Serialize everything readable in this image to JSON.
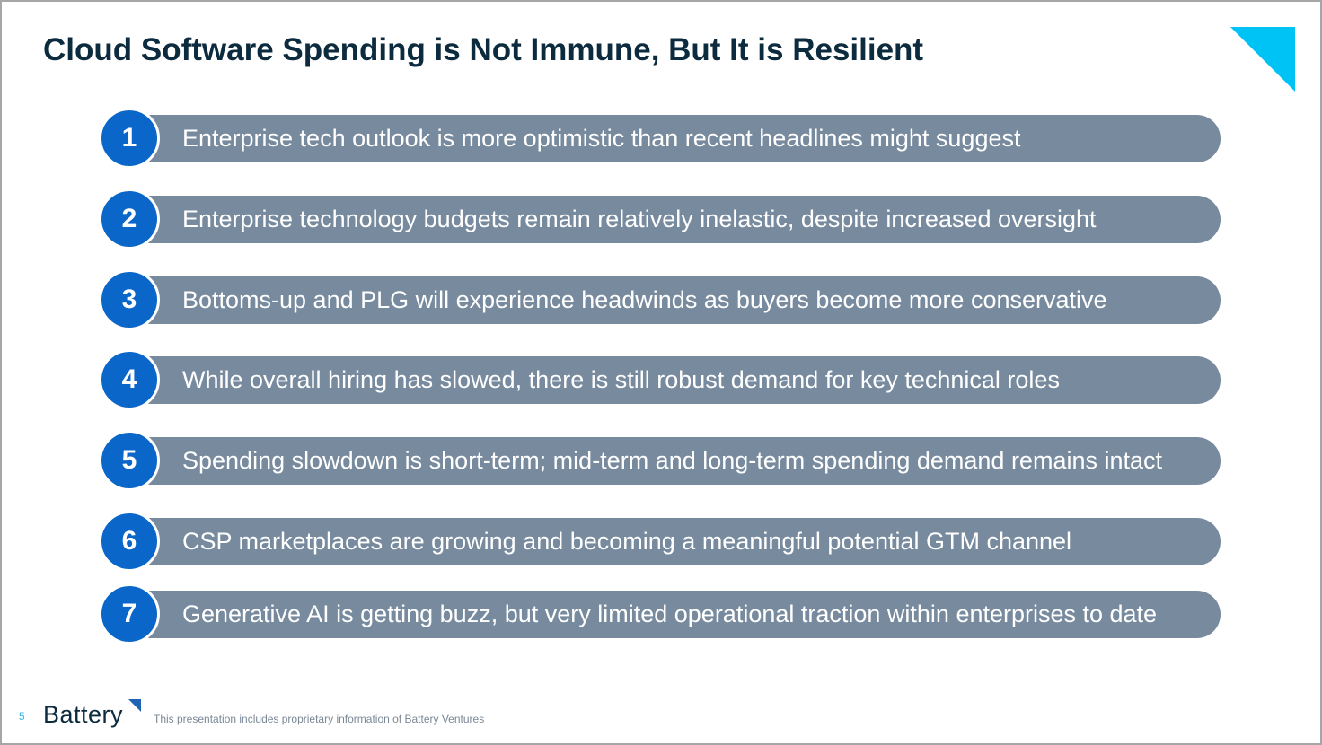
{
  "title": "Cloud Software Spending is Not Immune, But It is Resilient",
  "items": [
    {
      "number": "1",
      "text": "Enterprise tech outlook is more optimistic than recent headlines might suggest"
    },
    {
      "number": "2",
      "text": "Enterprise technology budgets remain relatively inelastic, despite increased oversight"
    },
    {
      "number": "3",
      "text": "Bottoms-up and PLG will experience headwinds as buyers become more conservative"
    },
    {
      "number": "4",
      "text": "While overall hiring has slowed, there is still robust demand for key technical roles"
    },
    {
      "number": "5",
      "text": "Spending slowdown is short-term; mid-term and long-term spending demand remains intact"
    },
    {
      "number": "6",
      "text": "CSP marketplaces are growing and becoming a meaningful potential GTM channel"
    },
    {
      "number": "7",
      "text": "Generative AI is getting buzz, but very limited operational traction within enterprises to date"
    }
  ],
  "footer": {
    "page_number": "5",
    "logo": "Battery",
    "disclaimer": "This presentation includes proprietary information of Battery Ventures"
  },
  "colors": {
    "accent": "#00c3f5",
    "circle": "#0a66c8",
    "bar": "#778a9e",
    "title": "#0d2b3e"
  }
}
